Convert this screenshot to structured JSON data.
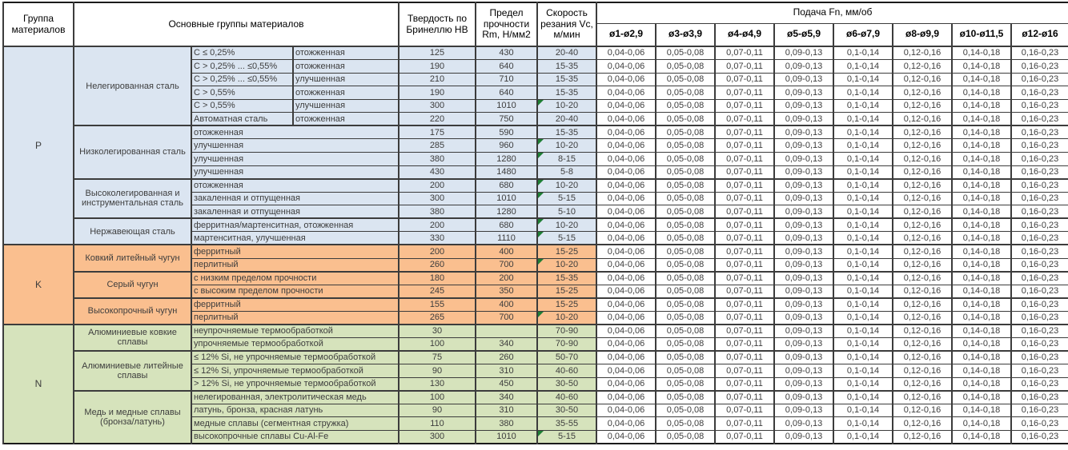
{
  "header": {
    "col_group": "Группа материалов",
    "col_materials": "Основные группы материалов",
    "col_hardness": "Твердость по Бринеллю HB",
    "col_strength": "Предел прочности Rm, Н/мм2",
    "col_speed": "Скорость резания Vc, м/мин",
    "feed_title": "Подача Fn, мм/об",
    "feed_cols": [
      "ø1-ø2,9",
      "ø3-ø3,9",
      "ø4-ø4,9",
      "ø5-ø5,9",
      "ø6-ø7,9",
      "ø8-ø9,9",
      "ø10-ø11,5",
      "ø12-ø16"
    ]
  },
  "feed_values": [
    "0,04-0,06",
    "0,05-0,08",
    "0,07-0,11",
    "0,09-0,13",
    "0,1-0,14",
    "0,12-0,16",
    "0,14-0,18",
    "0,16-0,23"
  ],
  "colors": {
    "group_p": "#dbe5f1",
    "group_k": "#fabf8f",
    "group_n": "#d6e3bc",
    "note_triangle": "#1e7e34"
  },
  "groups": [
    {
      "letter": "P",
      "color_key": "group_p",
      "sections": [
        {
          "name": "Нелегированная сталь",
          "rows": [
            {
              "spec": "C ≤ 0,25%",
              "state": "отожженная",
              "hb": "125",
              "rm": "430",
              "vc": "20-40",
              "note": false
            },
            {
              "spec": "C > 0,25% ... ≤0,55%",
              "state": "отожженная",
              "hb": "190",
              "rm": "640",
              "vc": "15-35",
              "note": false
            },
            {
              "spec": "C > 0,25% ... ≤0,55%",
              "state": "улучшенная",
              "hb": "210",
              "rm": "710",
              "vc": "15-35",
              "note": false
            },
            {
              "spec": "C > 0,55%",
              "state": "отожженная",
              "hb": "190",
              "rm": "640",
              "vc": "15-35",
              "note": false
            },
            {
              "spec": "C > 0,55%",
              "state": "улучшенная",
              "hb": "300",
              "rm": "1010",
              "vc": "10-20",
              "note": true
            },
            {
              "spec": "Автоматная сталь",
              "state": "отожженная",
              "hb": "220",
              "rm": "750",
              "vc": "20-40",
              "note": false
            }
          ]
        },
        {
          "name": "Низколегированная сталь",
          "rows": [
            {
              "desc": "отожженная",
              "hb": "175",
              "rm": "590",
              "vc": "15-35",
              "note": false
            },
            {
              "desc": "улучшенная",
              "hb": "285",
              "rm": "960",
              "vc": "10-20",
              "note": true
            },
            {
              "desc": "улучшенная",
              "hb": "380",
              "rm": "1280",
              "vc": "8-15",
              "note": true
            },
            {
              "desc": "улучшенная",
              "hb": "430",
              "rm": "1480",
              "vc": "5-8",
              "note": false
            }
          ]
        },
        {
          "name": "Высоколегированная и инструментальная сталь",
          "rows": [
            {
              "desc": "отожженная",
              "hb": "200",
              "rm": "680",
              "vc": "10-20",
              "note": true
            },
            {
              "desc": "закаленная и отпущенная",
              "hb": "300",
              "rm": "1010",
              "vc": "5-15",
              "note": true
            },
            {
              "desc": "закаленная и отпущенная",
              "hb": "380",
              "rm": "1280",
              "vc": "5-10",
              "note": false
            }
          ]
        },
        {
          "name": "Нержавеющая сталь",
          "rows": [
            {
              "desc": "ферритная/мартенситная, отожженная",
              "hb": "200",
              "rm": "680",
              "vc": "10-20",
              "note": true
            },
            {
              "desc": "мартенситная, улучшенная",
              "hb": "330",
              "rm": "1110",
              "vc": "5-15",
              "note": true
            }
          ]
        }
      ]
    },
    {
      "letter": "K",
      "color_key": "group_k",
      "sections": [
        {
          "name": "Ковкий литейный чугун",
          "rows": [
            {
              "desc": "ферритный",
              "hb": "200",
              "rm": "400",
              "vc": "15-25",
              "note": false
            },
            {
              "desc": "перлитный",
              "hb": "260",
              "rm": "700",
              "vc": "10-20",
              "note": true
            }
          ]
        },
        {
          "name": "Серый чугун",
          "rows": [
            {
              "desc": "с низким пределом прочности",
              "hb": "180",
              "rm": "200",
              "vc": "15-35",
              "note": false
            },
            {
              "desc": "с высоким пределом прочности",
              "hb": "245",
              "rm": "350",
              "vc": "15-25",
              "note": false
            }
          ]
        },
        {
          "name": "Высокопрочный чугун",
          "rows": [
            {
              "desc": "ферритный",
              "hb": "155",
              "rm": "400",
              "vc": "15-25",
              "note": false
            },
            {
              "desc": "перлитный",
              "hb": "265",
              "rm": "700",
              "vc": "10-20",
              "note": true
            }
          ]
        }
      ]
    },
    {
      "letter": "N",
      "color_key": "group_n",
      "sections": [
        {
          "name": "Алюминиевые ковкие сплавы",
          "rows": [
            {
              "desc": "неупрочняемые термообработкой",
              "hb": "30",
              "rm": "",
              "vc": "70-90",
              "note": false
            },
            {
              "desc": "упрочняемые термообработкой",
              "hb": "100",
              "rm": "340",
              "vc": "70-90",
              "note": false
            }
          ]
        },
        {
          "name": "Алюминиевые литейные сплавы",
          "rows": [
            {
              "desc": "≤ 12% Si, не упрочняемые термообработкой",
              "hb": "75",
              "rm": "260",
              "vc": "50-70",
              "note": false
            },
            {
              "desc": "≤ 12% Si, упрочняемые термообработкой",
              "hb": "90",
              "rm": "310",
              "vc": "40-60",
              "note": false
            },
            {
              "desc": "> 12% Si, не упрочняемые термообработкой",
              "hb": "130",
              "rm": "450",
              "vc": "30-50",
              "note": false
            }
          ]
        },
        {
          "name": "Медь и медные сплавы (бронза/латунь)",
          "rows": [
            {
              "desc": "нелегированная, электролитическая медь",
              "hb": "100",
              "rm": "340",
              "vc": "40-60",
              "note": false
            },
            {
              "desc": "латунь, бронза, красная латунь",
              "hb": "90",
              "rm": "310",
              "vc": "30-50",
              "note": false
            },
            {
              "desc": "медные сплавы (сегментная стружка)",
              "hb": "110",
              "rm": "380",
              "vc": "35-55",
              "note": false
            },
            {
              "desc": "высокопрочные сплавы Cu-Al-Fe",
              "hb": "300",
              "rm": "1010",
              "vc": "5-15",
              "note": true
            }
          ]
        }
      ]
    }
  ]
}
